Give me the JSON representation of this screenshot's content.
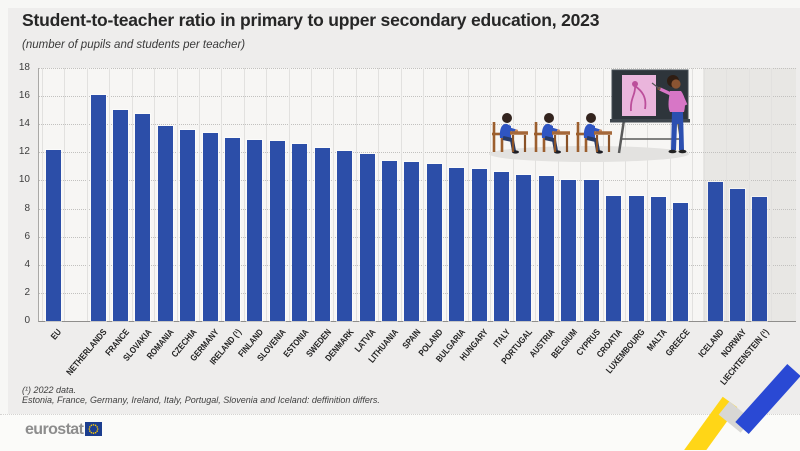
{
  "title": "Student-to-teacher ratio in primary to upper secondary education, 2023",
  "subtitle": "(number of pupils and students per teacher)",
  "footnotes": [
    "(¹) 2022 data.",
    "Estonia, France, Germany, Ireland, Italy, Portugal, Slovenia and Iceland: deffinition differs."
  ],
  "logo": {
    "text": "eurostat"
  },
  "colors": {
    "bar": "#2c4ea8",
    "efta_shade": "#e8e7e4",
    "accent_yellow": "#ffd617",
    "accent_blue": "#2a49d4",
    "flag_blue": "#1c3e8f",
    "star_yellow": "#ffcc00"
  },
  "chart_data": {
    "type": "bar",
    "title": "Student-to-teacher ratio in primary to upper secondary education, 2023",
    "subtitle": "(number of pupils and students per teacher)",
    "xlabel": "",
    "ylabel": "",
    "ylim": [
      0,
      18
    ],
    "ytick_step": 2,
    "grid": "horizontal-dotted",
    "legend": "none",
    "groups": [
      {
        "name": "eu-aggregate",
        "shaded": false,
        "bars": [
          {
            "label": "EU",
            "value": 12.2
          }
        ]
      },
      {
        "name": "eu-members",
        "shaded": false,
        "bars": [
          {
            "label": "NETHERLANDS",
            "value": 16.1
          },
          {
            "label": "FRANCE",
            "value": 15.0
          },
          {
            "label": "SLOVAKIA",
            "value": 14.7
          },
          {
            "label": "ROMANIA",
            "value": 13.9
          },
          {
            "label": "CZECHIA",
            "value": 13.6
          },
          {
            "label": "GERMANY",
            "value": 13.4
          },
          {
            "label": "IRELAND (¹)",
            "value": 13.0
          },
          {
            "label": "FINLAND",
            "value": 12.9
          },
          {
            "label": "SLOVENIA",
            "value": 12.8
          },
          {
            "label": "ESTONIA",
            "value": 12.6
          },
          {
            "label": "SWEDEN",
            "value": 12.3
          },
          {
            "label": "DENMARK",
            "value": 12.1
          },
          {
            "label": "LATVIA",
            "value": 11.9
          },
          {
            "label": "LITHUANIA",
            "value": 11.4
          },
          {
            "label": "SPAIN",
            "value": 11.3
          },
          {
            "label": "POLAND",
            "value": 11.2
          },
          {
            "label": "BULGARIA",
            "value": 10.9
          },
          {
            "label": "HUNGARY",
            "value": 10.8
          },
          {
            "label": "ITALY",
            "value": 10.6
          },
          {
            "label": "PORTUGAL",
            "value": 10.4
          },
          {
            "label": "AUSTRIA",
            "value": 10.3
          },
          {
            "label": "BELGIUM",
            "value": 10.0
          },
          {
            "label": "CYPRUS",
            "value": 10.0
          },
          {
            "label": "CROATIA",
            "value": 8.9
          },
          {
            "label": "LUXEMBOURG",
            "value": 8.9
          },
          {
            "label": "MALTA",
            "value": 8.8
          },
          {
            "label": "GREECE",
            "value": 8.4
          }
        ]
      },
      {
        "name": "efta",
        "shaded": true,
        "bars": [
          {
            "label": "ICELAND",
            "value": 9.9
          },
          {
            "label": "NORWAY",
            "value": 9.4
          },
          {
            "label": "LIECHTENSTEIN (¹)",
            "value": 8.8
          }
        ]
      }
    ]
  }
}
